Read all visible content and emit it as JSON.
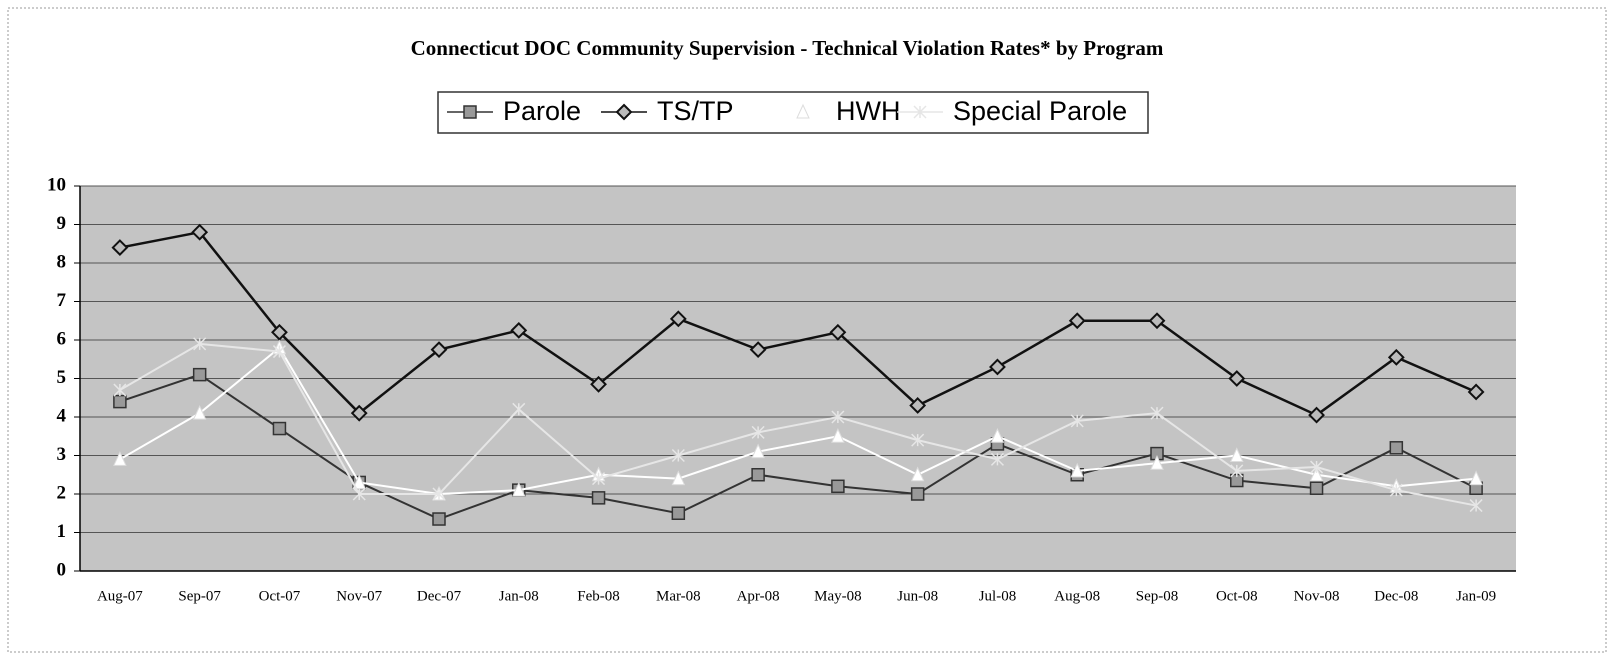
{
  "chart_data": {
    "type": "line",
    "title": "Connecticut DOC Community Supervision - Technical Violation Rates* by Program",
    "categories": [
      "Aug-07",
      "Sep-07",
      "Oct-07",
      "Nov-07",
      "Dec-07",
      "Jan-08",
      "Feb-08",
      "Mar-08",
      "Apr-08",
      "May-08",
      "Jun-08",
      "Jul-08",
      "Aug-08",
      "Sep-08",
      "Oct-08",
      "Nov-08",
      "Dec-08",
      "Jan-09"
    ],
    "series": [
      {
        "name": "Parole",
        "color": "#333333",
        "marker": "square",
        "values": [
          4.4,
          5.1,
          3.7,
          2.3,
          1.35,
          2.1,
          1.9,
          1.5,
          2.5,
          2.2,
          2.0,
          3.3,
          2.5,
          3.05,
          2.35,
          2.15,
          3.2,
          2.15
        ]
      },
      {
        "name": "TS/TP",
        "color": "#111111",
        "marker": "diamond",
        "values": [
          8.4,
          8.8,
          6.2,
          4.1,
          5.75,
          6.25,
          4.85,
          6.55,
          5.75,
          6.2,
          4.3,
          5.3,
          6.5,
          6.5,
          5.0,
          4.05,
          5.55,
          4.65
        ]
      },
      {
        "name": "HWH",
        "color": "#ffffff",
        "marker": "triangle",
        "values": [
          2.9,
          4.1,
          5.8,
          2.3,
          2.0,
          2.1,
          2.5,
          2.4,
          3.1,
          3.5,
          2.5,
          3.5,
          2.6,
          2.8,
          3.0,
          2.5,
          2.2,
          2.4
        ]
      },
      {
        "name": "Special Parole",
        "color": "#e6e6e6",
        "marker": "x",
        "values": [
          4.7,
          5.9,
          5.7,
          2.0,
          2.0,
          4.2,
          2.4,
          3.0,
          3.6,
          4.0,
          3.4,
          2.9,
          3.9,
          4.1,
          2.6,
          2.7,
          2.1,
          1.7
        ]
      }
    ],
    "ylim": [
      0,
      10
    ],
    "yticks": [
      0,
      1,
      2,
      3,
      4,
      5,
      6,
      7,
      8,
      9,
      10
    ],
    "grid": true
  }
}
